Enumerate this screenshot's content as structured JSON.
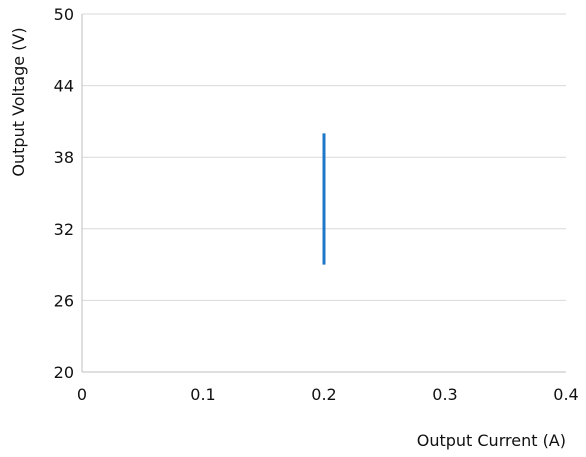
{
  "chart_data": {
    "type": "line",
    "xlabel": "Output Current (A)",
    "ylabel": "Output Voltage (V)",
    "xlim": [
      0,
      0.4
    ],
    "ylim": [
      20,
      50
    ],
    "x_ticks": [
      "0",
      "0.1",
      "0.2",
      "0.3",
      "0.4"
    ],
    "y_ticks": [
      "20",
      "26",
      "32",
      "38",
      "44",
      "50"
    ],
    "grid": "horizontal",
    "series": [
      {
        "color": "#1f77c8",
        "points": [
          {
            "x": 0.2,
            "y": 29
          },
          {
            "x": 0.2,
            "y": 40
          }
        ]
      }
    ]
  }
}
